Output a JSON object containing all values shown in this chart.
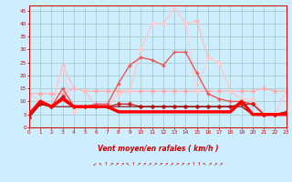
{
  "xlabel": "Vent moyen/en rafales ( km/h )",
  "bg_color": "#cceeff",
  "grid_color": "#aacccc",
  "x_ticks": [
    0,
    1,
    2,
    3,
    4,
    5,
    6,
    7,
    8,
    9,
    10,
    11,
    12,
    13,
    14,
    15,
    16,
    17,
    18,
    19,
    20,
    21,
    22,
    23
  ],
  "y_ticks": [
    0,
    5,
    10,
    15,
    20,
    25,
    30,
    35,
    40,
    45
  ],
  "ylim": [
    0,
    47
  ],
  "xlim": [
    0,
    23
  ],
  "series": [
    {
      "color": "#ffaaaa",
      "marker": "D",
      "markersize": 2.0,
      "linewidth": 0.8,
      "zorder": 2,
      "y": [
        13,
        13,
        13,
        13,
        15,
        14,
        14,
        14,
        14,
        14,
        14,
        14,
        14,
        14,
        14,
        14,
        14,
        14,
        14,
        14,
        14,
        15,
        14,
        14
      ]
    },
    {
      "color": "#ffbbbb",
      "marker": "D",
      "markersize": 2.0,
      "linewidth": 0.8,
      "zorder": 2,
      "y": [
        13,
        10,
        8,
        24,
        15,
        14,
        8,
        8,
        13,
        14,
        30,
        40,
        40,
        46,
        40,
        41,
        27,
        25,
        14,
        11,
        11,
        5,
        5,
        14
      ]
    },
    {
      "color": "#ffcccc",
      "marker": "D",
      "markersize": 2.0,
      "linewidth": 0.8,
      "zorder": 2,
      "y": [
        13,
        10,
        8,
        23,
        6,
        8,
        8,
        8,
        13,
        14,
        30,
        40,
        40,
        46,
        40,
        14,
        27,
        25,
        14,
        11,
        11,
        5,
        5,
        14
      ]
    },
    {
      "color": "#ee5555",
      "marker": "+",
      "markersize": 3.5,
      "linewidth": 1.0,
      "zorder": 3,
      "y": [
        5,
        10,
        8,
        15,
        8,
        8,
        9,
        9,
        17,
        24,
        27,
        26,
        24,
        29,
        29,
        21,
        13,
        11,
        10,
        10,
        9,
        5,
        5,
        6
      ]
    },
    {
      "color": "#cc2222",
      "marker": "D",
      "markersize": 2.0,
      "linewidth": 1.0,
      "zorder": 3,
      "y": [
        4,
        9,
        8,
        12,
        8,
        8,
        8,
        8,
        9,
        9,
        8,
        8,
        8,
        8,
        8,
        8,
        8,
        8,
        8,
        9,
        9,
        5,
        5,
        6
      ]
    },
    {
      "color": "#ff0000",
      "marker": null,
      "markersize": 0,
      "linewidth": 2.5,
      "zorder": 4,
      "y": [
        5,
        10,
        8,
        11,
        8,
        8,
        8,
        8,
        6,
        6,
        6,
        6,
        6,
        6,
        6,
        6,
        6,
        6,
        6,
        10,
        5,
        5,
        5,
        5
      ]
    },
    {
      "color": "#880000",
      "marker": null,
      "markersize": 0,
      "linewidth": 0.8,
      "zorder": 3,
      "y": [
        4,
        9,
        8,
        8,
        8,
        8,
        8,
        8,
        8,
        8,
        8,
        8,
        8,
        8,
        8,
        8,
        8,
        8,
        8,
        8,
        5,
        5,
        5,
        5
      ]
    }
  ],
  "wind_arrows": [
    "↙",
    "↖",
    "↑",
    "↗",
    "↗",
    "↗",
    "↖",
    "↑",
    "↗",
    "↗",
    "↗",
    "↗",
    "↗",
    "↗",
    "↗",
    "↗",
    "↗",
    "↗",
    "↑",
    "↑",
    "↖",
    "↗",
    "↗",
    "↗"
  ]
}
